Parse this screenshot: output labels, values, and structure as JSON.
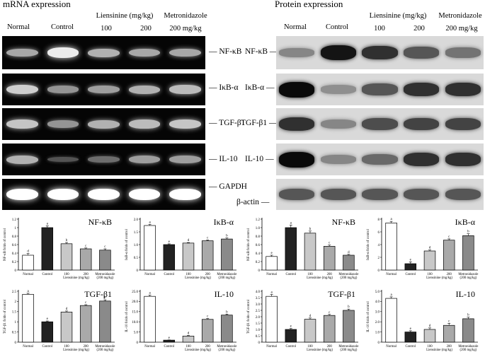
{
  "headers": {
    "mrna": "mRNA expression",
    "protein": "Protein expression"
  },
  "lanes": {
    "normal": "Normal",
    "control": "Control",
    "liensinine": "Liensinine (mg/kg)",
    "dose100": "100",
    "dose200": "200",
    "metronidazole": "Metronidazole",
    "metro_dose": "200 mg/kg"
  },
  "markers": {
    "mrna": [
      "NF-κB",
      "IκB-α",
      "TGF-β1",
      "IL-10",
      "GAPDH"
    ],
    "protein": [
      "NF-κB",
      "IκB-α",
      "TGF-β1",
      "IL-10",
      "β-actin"
    ]
  },
  "band_intensity": {
    "mrna": [
      [
        0.55,
        0.9,
        0.6,
        0.55,
        0.55
      ],
      [
        0.75,
        0.45,
        0.5,
        0.6,
        0.65
      ],
      [
        0.7,
        0.45,
        0.6,
        0.65,
        0.7
      ],
      [
        0.6,
        0.12,
        0.25,
        0.5,
        0.5
      ],
      [
        1.0,
        1.0,
        1.0,
        1.0,
        1.0
      ]
    ],
    "protein": [
      [
        0.35,
        0.95,
        0.8,
        0.6,
        0.45
      ],
      [
        1.0,
        0.3,
        0.6,
        0.8,
        0.8
      ],
      [
        0.8,
        0.35,
        0.65,
        0.7,
        0.7
      ],
      [
        1.0,
        0.35,
        0.5,
        0.8,
        0.8
      ],
      [
        0.6,
        0.6,
        0.6,
        0.6,
        0.6
      ]
    ]
  },
  "bar_colors": [
    "#ffffff",
    "#222222",
    "#c8c8c8",
    "#a9a9a9",
    "#8a8a8a"
  ],
  "chart_data": [
    {
      "type": "bar",
      "title": "NF-κB",
      "ylabel": "NF-κB folds of control",
      "categories": [
        "Normal",
        "Control",
        "100",
        "200",
        "Metronidazole\n(200 mg/kg)"
      ],
      "group_label": "Liensinine (mg/kg)",
      "values": [
        0.35,
        1.0,
        0.62,
        0.5,
        0.47
      ],
      "errors": [
        0.04,
        0.04,
        0.03,
        0.02,
        0.03
      ],
      "letters": [
        "d",
        "a",
        "b",
        "c",
        "c"
      ],
      "ylim": [
        0,
        1.2
      ],
      "yticks": [
        "0",
        "0.2",
        "0.4",
        "0.6",
        "0.8",
        "1",
        "1.2"
      ]
    },
    {
      "type": "bar",
      "title": "IκB-α",
      "ylabel": "IκB-α folds of control",
      "categories": [
        "Normal",
        "Control",
        "100",
        "200",
        "Metronidazole\n(200 mg/kg)"
      ],
      "group_label": "Liensinine (mg/kg)",
      "values": [
        1.75,
        1.0,
        1.06,
        1.15,
        1.22
      ],
      "errors": [
        0.04,
        0.03,
        0.02,
        0.03,
        0.04
      ],
      "letters": [
        "a",
        "e",
        "d",
        "c",
        "b"
      ],
      "ylim": [
        0,
        2.0
      ],
      "yticks": [
        "0",
        "0.5",
        "1.0",
        "1.5",
        "2.0"
      ]
    },
    {
      "type": "bar",
      "title": "TGF-β1",
      "ylabel": "TGF-β1 folds of control",
      "categories": [
        "Normal",
        "Control",
        "100",
        "200",
        "Metronidazole\n(200 mg/kg)"
      ],
      "group_label": "Liensinine (mg/kg)",
      "values": [
        2.35,
        1.0,
        1.48,
        1.8,
        2.02
      ],
      "errors": [
        0.05,
        0.04,
        0.05,
        0.04,
        0.06
      ],
      "letters": [
        "a",
        "e",
        "d",
        "c",
        "b"
      ],
      "ylim": [
        0,
        2.5
      ],
      "yticks": [
        "0",
        "0.5",
        "1",
        "1.5",
        "2",
        "2.5"
      ]
    },
    {
      "type": "bar",
      "title": "IL-10",
      "ylabel": "IL-10 folds of control",
      "categories": [
        "Normal",
        "Control",
        "100",
        "200",
        "Metronidazole\n(200 mg/kg)"
      ],
      "group_label": "Liensinine (mg/kg)",
      "values": [
        22.5,
        1.0,
        3.0,
        11.2,
        13.3
      ],
      "errors": [
        0.6,
        0.1,
        0.3,
        0.4,
        0.5
      ],
      "letters": [
        "a",
        "e",
        "d",
        "c",
        "b"
      ],
      "ylim": [
        0,
        25
      ],
      "yticks": [
        "0",
        "5.0",
        "10.0",
        "15.0",
        "20.0",
        "25.0"
      ]
    },
    {
      "type": "bar",
      "title": "NF-κB",
      "ylabel": "NF-κB folds of control",
      "categories": [
        "Normal",
        "Control",
        "100",
        "200",
        "Metronidazole\n(200 mg/kg)"
      ],
      "group_label": "Liensinine (mg/kg)",
      "values": [
        0.32,
        1.0,
        0.87,
        0.56,
        0.35
      ],
      "errors": [
        0.03,
        0.06,
        0.05,
        0.03,
        0.02
      ],
      "letters": [
        "e",
        "a",
        "b",
        "c",
        "d"
      ],
      "ylim": [
        0,
        1.2
      ],
      "yticks": [
        "0",
        "0.2",
        "0.4",
        "0.6",
        "0.8",
        "1.0",
        "1.2"
      ]
    },
    {
      "type": "bar",
      "title": "IκB-α",
      "ylabel": "IκB-α folds of control",
      "categories": [
        "Normal",
        "Control",
        "100",
        "200",
        "Metronidazole\n(200 mg/kg)"
      ],
      "group_label": "Liensinine (mg/kg)",
      "values": [
        7.4,
        1.0,
        3.0,
        4.7,
        5.4
      ],
      "errors": [
        0.25,
        0.3,
        0.15,
        0.2,
        0.3
      ],
      "letters": [
        "a",
        "e",
        "d",
        "c",
        "b"
      ],
      "ylim": [
        0,
        8
      ],
      "yticks": [
        "0",
        "2",
        "4",
        "6",
        "8"
      ]
    },
    {
      "type": "bar",
      "title": "TGF-β1",
      "ylabel": "TGF-β1 folds of control",
      "categories": [
        "Normal",
        "Control",
        "100",
        "200",
        "Metronidazole\n(200 mg/kg)"
      ],
      "group_label": "Liensinine (mg/kg)",
      "values": [
        3.6,
        1.0,
        1.8,
        2.1,
        2.5
      ],
      "errors": [
        0.15,
        0.07,
        0.1,
        0.08,
        0.1
      ],
      "letters": [
        "a",
        "e",
        "d",
        "c",
        "b"
      ],
      "ylim": [
        0,
        4
      ],
      "yticks": [
        "0",
        "0.5",
        "1.0",
        "1.5",
        "2.0",
        "2.5",
        "3.0",
        "3.5",
        "4.0"
      ]
    },
    {
      "type": "bar",
      "title": "IL-10",
      "ylabel": "IL-10 folds of control",
      "categories": [
        "Normal",
        "Control",
        "100",
        "200",
        "Metronidazole\n(200 mg/kg)"
      ],
      "group_label": "Liensinine (mg/kg)",
      "values": [
        4.3,
        1.0,
        1.25,
        1.65,
        2.3
      ],
      "errors": [
        0.15,
        0.12,
        0.15,
        0.2,
        0.15
      ],
      "letters": [
        "a",
        "e",
        "d",
        "c",
        "b"
      ],
      "ylim": [
        0,
        5
      ],
      "yticks": [
        "0",
        "1.0",
        "2.0",
        "3.0",
        "4.0",
        "5.0"
      ]
    }
  ]
}
